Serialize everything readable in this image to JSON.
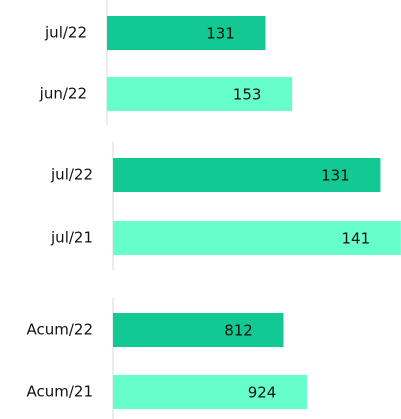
{
  "chart_data": [
    {
      "type": "bar",
      "orientation": "horizontal",
      "categories": [
        "jul/22",
        "jun/22"
      ],
      "values": [
        131,
        153
      ],
      "colors": [
        "#12c994",
        "#66ffcc"
      ],
      "xlim": [
        0,
        200
      ]
    },
    {
      "type": "bar",
      "orientation": "horizontal",
      "categories": [
        "jul/22",
        "jul/21"
      ],
      "values": [
        131,
        141
      ],
      "colors": [
        "#12c994",
        "#66ffcc"
      ],
      "xlim": [
        0,
        145
      ]
    },
    {
      "type": "bar",
      "orientation": "horizontal",
      "categories": [
        "Acum/22",
        "Acum/21"
      ],
      "values": [
        812,
        924
      ],
      "colors": [
        "#12c994",
        "#66ffcc"
      ],
      "xlim": [
        0,
        1000
      ]
    }
  ]
}
